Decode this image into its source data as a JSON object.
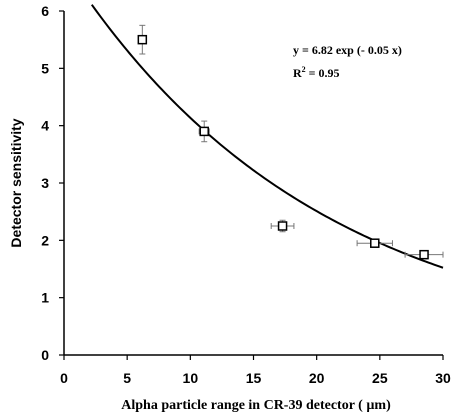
{
  "chart_data": {
    "type": "scatter",
    "title": "",
    "xlabel": "Alpha particle range in CR-39 detector ( µm)",
    "ylabel": "Detector sensitivity",
    "xlim": [
      0,
      30
    ],
    "ylim": [
      0,
      6
    ],
    "x_ticks": [
      "0",
      "5",
      "10",
      "15",
      "20",
      "25",
      "30"
    ],
    "y_ticks": [
      "0",
      "1",
      "2",
      "3",
      "4",
      "5",
      "6"
    ],
    "grid": false,
    "legend": "none",
    "series": [
      {
        "marker": "open-square",
        "points": [
          {
            "x": 6.2,
            "y": 5.5,
            "xerr": 0.3,
            "yerr": 0.25
          },
          {
            "x": 11.1,
            "y": 3.9,
            "xerr": 0.4,
            "yerr": 0.18
          },
          {
            "x": 17.3,
            "y": 2.25,
            "xerr": 0.9,
            "yerr": 0.1
          },
          {
            "x": 24.6,
            "y": 1.95,
            "xerr": 1.4,
            "yerr": 0.07
          },
          {
            "x": 28.5,
            "y": 1.75,
            "xerr": 1.5,
            "yerr": 0.07
          }
        ]
      }
    ],
    "fit": {
      "equation": "y = 6.82 exp (- 0.05 x)",
      "a": 6.82,
      "b": -0.05,
      "x_range": [
        2.2,
        30
      ],
      "r_squared_label": "R",
      "r_squared_sup": "2",
      "r_squared_value": " = 0.95"
    },
    "colors": {
      "axis": "#000000",
      "marker_fill": "#ffffff",
      "marker_stroke": "#000000",
      "fit_line": "#000000",
      "error_bar": "#777777"
    }
  }
}
